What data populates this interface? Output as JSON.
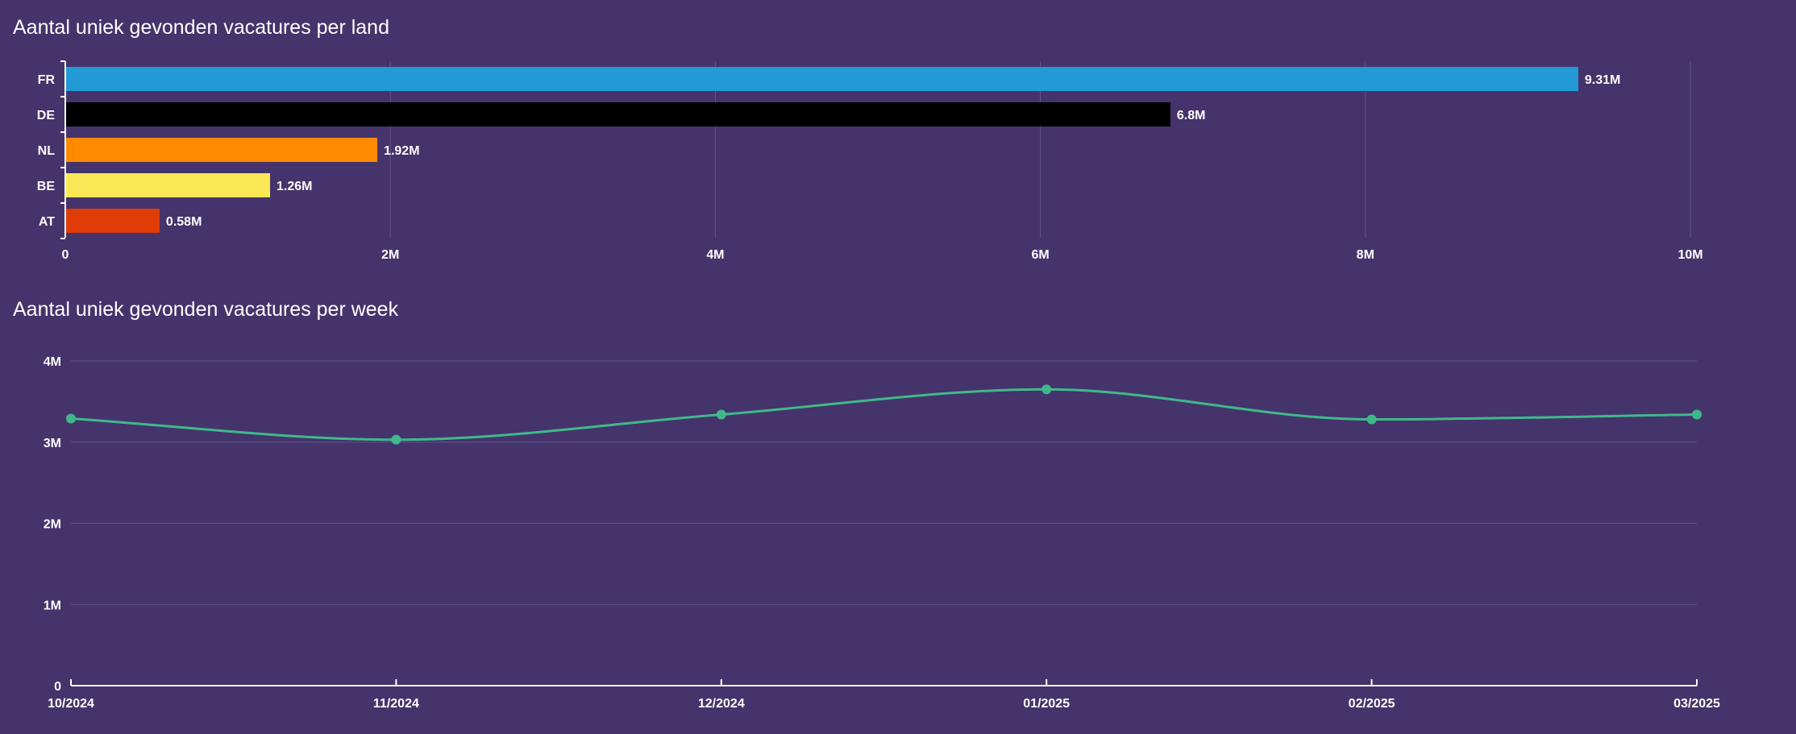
{
  "chart_data": [
    {
      "type": "bar",
      "orientation": "horizontal",
      "title": "Aantal uniek gevonden vacatures per land",
      "categories": [
        "FR",
        "DE",
        "NL",
        "BE",
        "AT"
      ],
      "values": [
        9310000,
        6800000,
        1920000,
        1260000,
        580000
      ],
      "data_labels": [
        "9.31M",
        "6.8M",
        "1.92M",
        "1.26M",
        "0.58M"
      ],
      "colors": [
        "#229ad6",
        "#000000",
        "#ff8a00",
        "#fae856",
        "#df3c08"
      ],
      "xlim": [
        0,
        10000000
      ],
      "xticks": [
        0,
        2000000,
        4000000,
        6000000,
        8000000,
        10000000
      ],
      "xtick_labels": [
        "0",
        "2M",
        "4M",
        "6M",
        "8M",
        "10M"
      ],
      "grid": "vertical"
    },
    {
      "type": "line",
      "title": "Aantal uniek gevonden vacatures per week",
      "x": [
        "10/2024",
        "11/2024",
        "12/2024",
        "01/2025",
        "02/2025",
        "03/2025"
      ],
      "values": [
        3290000,
        3030000,
        3340000,
        3650000,
        3280000,
        3340000
      ],
      "color": "#3fb98a",
      "ylim": [
        0,
        4000000
      ],
      "yticks": [
        0,
        1000000,
        2000000,
        3000000,
        4000000
      ],
      "ytick_labels": [
        "0",
        "1M",
        "2M",
        "3M",
        "4M"
      ],
      "grid": "horizontal",
      "smooth": true,
      "markers": true
    }
  ]
}
